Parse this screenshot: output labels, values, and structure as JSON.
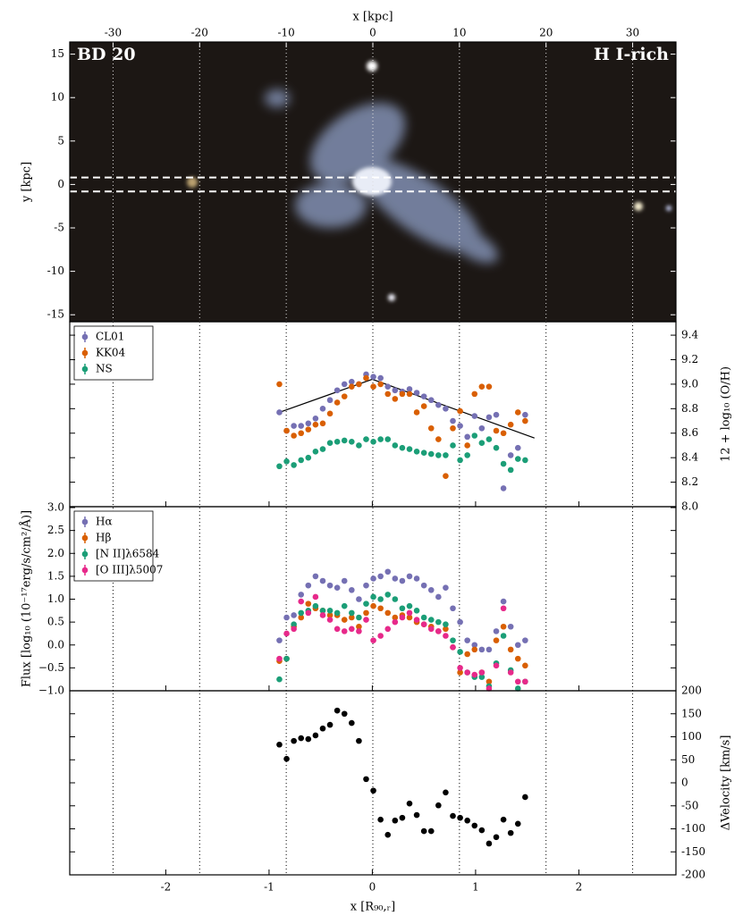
{
  "chart_data": [
    {
      "type": "image",
      "xlabel": "x [kpc]",
      "ylabel": "y [kpc]",
      "annotations": [
        "BD 20",
        "H I-rich"
      ],
      "xlim": [
        -35,
        35
      ],
      "xticks": [
        -30,
        -20,
        -10,
        0,
        10,
        20,
        30
      ],
      "vgrid": true,
      "ylim": [
        -15.8,
        16.4
      ],
      "yticks": [
        -15,
        -10,
        -5,
        0,
        5,
        10,
        15
      ],
      "slit_y": [
        -0.8,
        0.8
      ]
    },
    {
      "type": "scatter",
      "ylabel": "12 + log₁₀ (O/H)",
      "yaxis_side": "right",
      "legend": "upper left",
      "xlim": [
        -2.93,
        2.94
      ],
      "x": [
        -0.9,
        -0.83,
        -0.76,
        -0.69,
        -0.62,
        -0.55,
        -0.48,
        -0.41,
        -0.34,
        -0.27,
        -0.2,
        -0.13,
        -0.06,
        0.01,
        0.08,
        0.15,
        0.22,
        0.29,
        0.36,
        0.43,
        0.5,
        0.57,
        0.64,
        0.71,
        0.78,
        0.85,
        0.92,
        0.99,
        1.06,
        1.13,
        1.2,
        1.27,
        1.34,
        1.41,
        1.48
      ],
      "ylim": [
        8.0,
        9.51
      ],
      "yticks": [
        {
          "value": 8.0,
          "label": "8.0"
        },
        8.2,
        8.4,
        8.6,
        8.8,
        {
          "value": 9.0,
          "label": "9.0"
        },
        9.2,
        9.4
      ],
      "series": [
        {
          "name": "CL01",
          "color": "#7570b3",
          "values": [
            8.77,
            8.62,
            8.66,
            8.66,
            8.68,
            8.72,
            8.8,
            8.87,
            8.95,
            9.0,
            9.02,
            9.0,
            9.08,
            9.06,
            9.05,
            8.98,
            8.95,
            8.94,
            8.96,
            8.93,
            8.9,
            8.87,
            8.83,
            8.8,
            8.7,
            8.66,
            8.57,
            8.74,
            8.64,
            8.73,
            8.75,
            8.15,
            8.42,
            8.48,
            8.75
          ]
        },
        {
          "name": "KK04",
          "color": "#d95f02",
          "values": [
            9.0,
            8.62,
            8.58,
            8.6,
            8.63,
            8.67,
            8.68,
            8.76,
            8.85,
            8.9,
            8.98,
            9.0,
            9.05,
            8.98,
            9.0,
            8.92,
            8.88,
            8.92,
            8.92,
            8.77,
            8.82,
            8.64,
            8.55,
            8.25,
            8.64,
            8.78,
            8.5,
            8.92,
            8.98,
            8.98,
            8.62,
            8.6,
            8.67,
            8.77,
            8.7
          ]
        },
        {
          "name": "NS",
          "color": "#1b9e77",
          "values": [
            8.33,
            8.37,
            8.34,
            8.38,
            8.4,
            8.45,
            8.47,
            8.52,
            8.53,
            8.54,
            8.53,
            8.5,
            8.55,
            8.53,
            8.55,
            8.55,
            8.5,
            8.48,
            8.47,
            8.45,
            8.44,
            8.43,
            8.42,
            8.42,
            8.5,
            8.38,
            8.42,
            8.58,
            8.52,
            8.55,
            8.48,
            8.35,
            8.3,
            8.39,
            8.38
          ]
        }
      ],
      "fit": {
        "color": "#000000",
        "x": [
          -0.9,
          0,
          1.57
        ],
        "values": [
          8.77,
          9.04,
          8.56
        ]
      }
    },
    {
      "type": "scatter",
      "ylabel": "Flux [log₁₀ (10⁻¹⁷erg/s/cm²/Å)]",
      "yaxis_side": "left",
      "legend": "upper left",
      "xlim": [
        -2.93,
        2.94
      ],
      "x": [
        -0.9,
        -0.83,
        -0.76,
        -0.69,
        -0.62,
        -0.55,
        -0.48,
        -0.41,
        -0.34,
        -0.27,
        -0.2,
        -0.13,
        -0.06,
        0.01,
        0.08,
        0.15,
        0.22,
        0.29,
        0.36,
        0.43,
        0.5,
        0.57,
        0.64,
        0.71,
        0.78,
        0.85,
        0.92,
        0.99,
        1.06,
        1.13,
        1.2,
        1.27,
        1.34,
        1.41,
        1.48
      ],
      "ylim": [
        -1.0,
        3.02
      ],
      "yticks": [
        {
          "value": -1.0,
          "label": "−1.0"
        },
        {
          "value": -0.5,
          "label": "−0.5"
        },
        {
          "value": 0,
          "label": "0.0"
        },
        0.5,
        {
          "value": 1,
          "label": "1.0"
        },
        1.5,
        {
          "value": 2,
          "label": "2.0"
        },
        2.5,
        {
          "value": 3,
          "label": "3.0"
        }
      ],
      "series": [
        {
          "name": "Hα",
          "color": "#7570b3",
          "values": [
            0.1,
            0.6,
            0.65,
            1.1,
            1.3,
            1.5,
            1.4,
            1.3,
            1.25,
            1.4,
            1.2,
            1.0,
            1.3,
            1.45,
            1.5,
            1.6,
            1.45,
            1.4,
            1.5,
            1.45,
            1.3,
            1.2,
            1.05,
            1.25,
            0.8,
            0.5,
            0.1,
            0.0,
            -0.1,
            -0.1,
            0.3,
            0.95,
            0.4,
            0.0,
            0.1
          ]
        },
        {
          "name": "Hβ",
          "color": "#d95f02",
          "values": [
            -0.35,
            -0.3,
            0.4,
            0.6,
            0.9,
            0.8,
            0.75,
            0.65,
            0.65,
            0.55,
            0.6,
            0.4,
            0.7,
            0.85,
            0.8,
            0.7,
            0.6,
            0.65,
            0.6,
            0.5,
            0.45,
            0.4,
            0.3,
            0.35,
            -0.05,
            -0.6,
            -0.2,
            -0.1,
            -0.6,
            -0.8,
            0.1,
            0.4,
            -0.1,
            -0.3,
            -0.45
          ]
        },
        {
          "name": "[N II]λ6584",
          "color": "#1b9e77",
          "values": [
            -0.75,
            -0.3,
            0.45,
            0.7,
            0.75,
            0.85,
            0.75,
            0.75,
            0.7,
            0.85,
            0.7,
            0.6,
            0.9,
            1.05,
            1.0,
            1.1,
            1.0,
            0.8,
            0.85,
            0.75,
            0.6,
            0.55,
            0.5,
            0.45,
            0.1,
            -0.15,
            -0.6,
            -0.7,
            -0.7,
            -0.9,
            -0.4,
            0.2,
            -0.55,
            -0.95,
            -0.8
          ]
        },
        {
          "name": "[O III]λ5007",
          "color": "#e7298a",
          "values": [
            -0.3,
            0.25,
            0.35,
            0.95,
            0.7,
            1.05,
            0.65,
            0.55,
            0.35,
            0.3,
            0.35,
            0.3,
            0.55,
            0.1,
            0.2,
            0.35,
            0.5,
            0.6,
            0.7,
            0.55,
            0.45,
            0.35,
            0.3,
            0.2,
            -0.05,
            -0.5,
            -0.6,
            -0.65,
            -0.6,
            -0.95,
            -0.45,
            0.8,
            -0.6,
            -0.8,
            -0.8
          ]
        }
      ]
    },
    {
      "type": "scatter",
      "ylabel": "ΔVelocity [km/s]",
      "yaxis_side": "right",
      "xlabel": "x [R₉₀,ᵣ]",
      "xlim": [
        -2.93,
        2.94
      ],
      "xticks": [
        -2,
        -1,
        0,
        1,
        2
      ],
      "x": [
        -0.9,
        -0.83,
        -0.76,
        -0.69,
        -0.62,
        -0.55,
        -0.48,
        -0.41,
        -0.34,
        -0.27,
        -0.2,
        -0.13,
        -0.06,
        0.01,
        0.08,
        0.15,
        0.22,
        0.29,
        0.36,
        0.43,
        0.5,
        0.57,
        0.64,
        0.71,
        0.78,
        0.85,
        0.92,
        0.99,
        1.06,
        1.13,
        1.2,
        1.27,
        1.34,
        1.41,
        1.48
      ],
      "ylim": [
        -200,
        200
      ],
      "yticks": [
        -200,
        -150,
        -100,
        -50,
        0,
        50,
        100,
        150,
        200
      ],
      "series": [
        {
          "color": "#000000",
          "values": [
            83,
            52,
            91,
            97,
            95,
            103,
            118,
            126,
            157,
            150,
            130,
            91,
            8,
            -17,
            -80,
            -113,
            -82,
            -76,
            -45,
            -70,
            -105,
            -105,
            -49,
            -21,
            -72,
            -76,
            -82,
            -93,
            -103,
            -132,
            -118,
            -80,
            -109,
            -89,
            -31
          ]
        }
      ]
    }
  ]
}
